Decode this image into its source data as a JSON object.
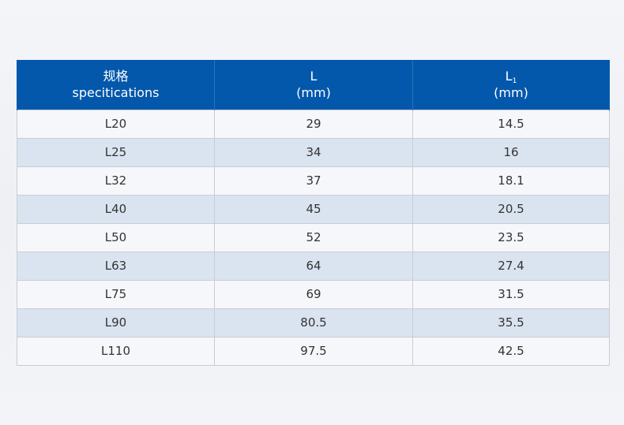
{
  "table": {
    "headers": [
      {
        "line1": "规格",
        "line2": "specitications"
      },
      {
        "line1": "L",
        "line2": "(mm)"
      },
      {
        "line1": "L",
        "sub": "1",
        "line2": "(mm)"
      }
    ],
    "rows": [
      [
        "L20",
        "29",
        "14.5"
      ],
      [
        "L25",
        "34",
        "16"
      ],
      [
        "L32",
        "37",
        "18.1"
      ],
      [
        "L40",
        "45",
        "20.5"
      ],
      [
        "L50",
        "52",
        "23.5"
      ],
      [
        "L63",
        "64",
        "27.4"
      ],
      [
        "L75",
        "69",
        "31.5"
      ],
      [
        "L90",
        "80.5",
        "35.5"
      ],
      [
        "L110",
        "97.5",
        "42.5"
      ]
    ],
    "colors": {
      "header_bg": "#0358ab",
      "header_text": "#ffffff",
      "row_light": "#f6f7fa",
      "row_blue": "#dae4f0",
      "grid": "#c9cdd4"
    }
  }
}
